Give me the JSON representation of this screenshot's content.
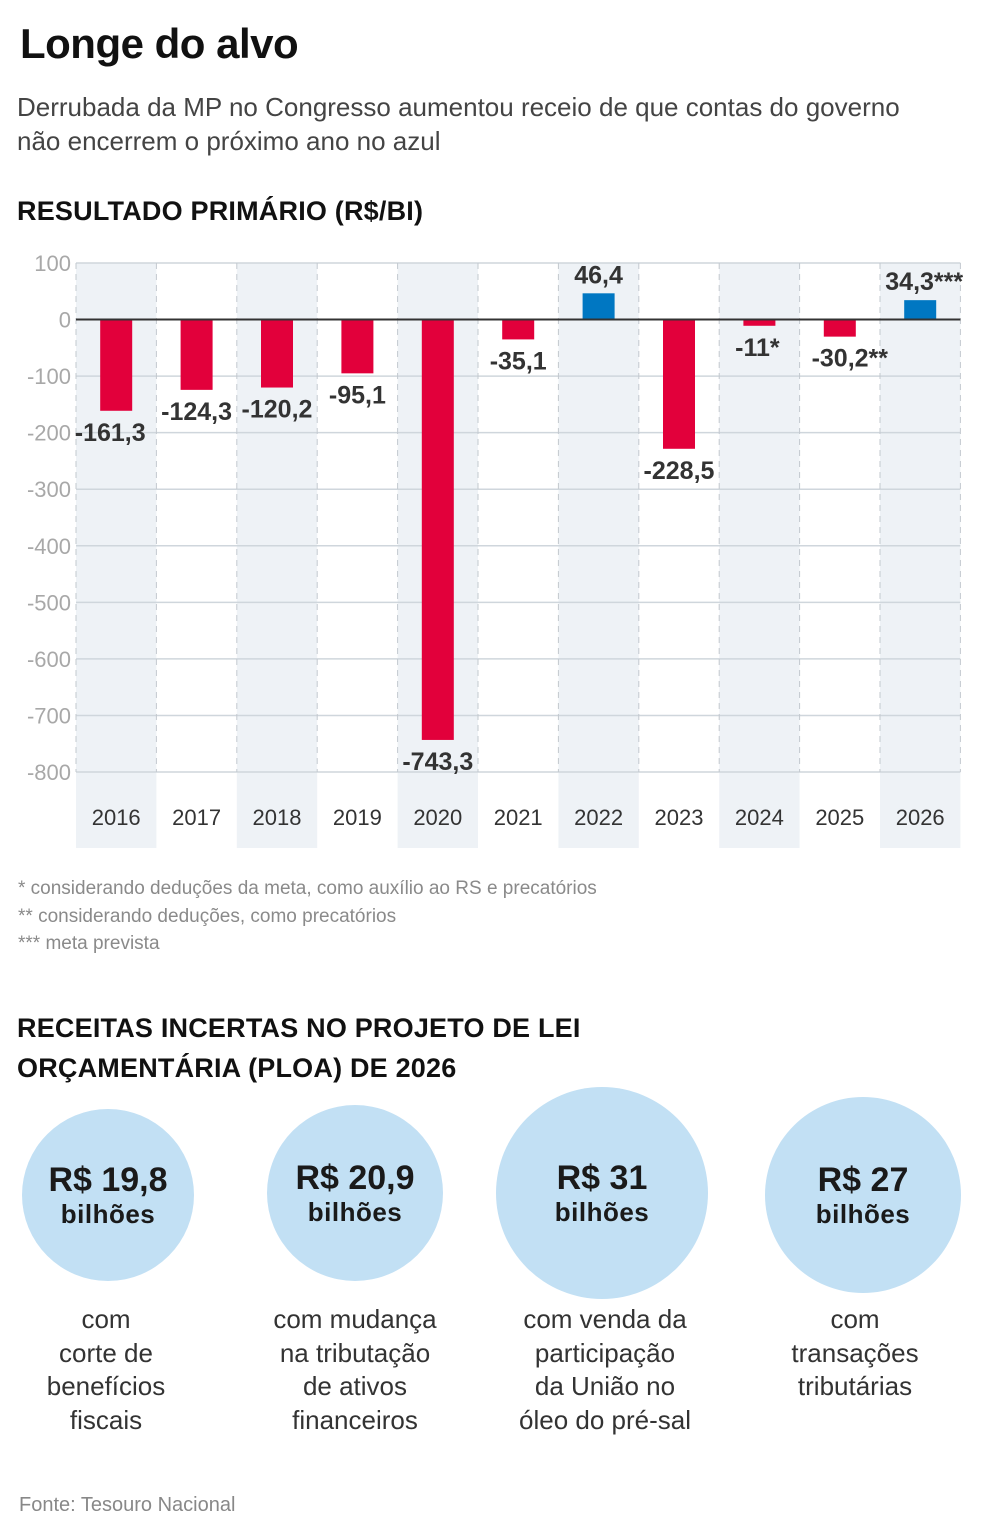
{
  "header": {
    "title": "Longe do alvo",
    "subtitle": "Derrubada da MP no Congresso aumentou receio de que contas do governo não encerrem o próximo ano no azul"
  },
  "chart_data": {
    "type": "bar",
    "title": "RESULTADO PRIMÁRIO (R$/BI)",
    "xlabel": "",
    "ylabel": "",
    "categories": [
      "2016",
      "2017",
      "2018",
      "2019",
      "2020",
      "2021",
      "2022",
      "2023",
      "2024",
      "2025",
      "2026"
    ],
    "values": [
      -161.3,
      -124.3,
      -120.2,
      -95.1,
      -743.3,
      -35.1,
      46.4,
      -228.5,
      -11,
      -30.2,
      34.3
    ],
    "data_labels": [
      "-161,3",
      "-124,3",
      "-120,2",
      "-95,1",
      "-743,3",
      "-35,1",
      "46,4",
      "-228,5",
      "-11*",
      "-30,2**",
      "34,3***"
    ],
    "ylim": [
      -800,
      100
    ],
    "yticks": [
      100,
      0,
      -100,
      -200,
      -300,
      -400,
      -500,
      -600,
      -700,
      -800
    ],
    "ytick_labels": [
      "100",
      "0",
      "-100",
      "-200",
      "-300",
      "-400",
      "-500",
      "-600",
      "-700",
      "-800"
    ],
    "grid": true,
    "legend": "none",
    "colors": {
      "negative": "#e2003b",
      "positive": "#0077c2",
      "zero_line": "#333333",
      "gridline": "#cfd6dc",
      "band": "#eef2f6",
      "tick_label": "#a8a8a8",
      "data_label": "#333333",
      "category_label": "#333333"
    }
  },
  "footnotes": [
    "* considerando deduções da meta, como auxílio ao RS e precatórios",
    "** considerando deduções, como precatórios",
    "*** meta prevista"
  ],
  "revenues": {
    "title": "RECEITAS INCERTAS NO PROJETO DE LEI ORÇAMENTÁRIA (PLOA) DE 2026",
    "bubble_color": "#c2e0f4",
    "items": [
      {
        "amount": "R$ 19,8",
        "unit": "bilhões",
        "value_billions": 19.8,
        "description": "com\ncorte de\nbenefícios\nfiscais"
      },
      {
        "amount": "R$ 20,9",
        "unit": "bilhões",
        "value_billions": 20.9,
        "description": "com mudança\nna tributação\nde ativos\nfinanceiros"
      },
      {
        "amount": "R$ 31",
        "unit": "bilhões",
        "value_billions": 31,
        "description": "com venda da\nparticipação\nda União no\nóleo do pré-sal"
      },
      {
        "amount": "R$ 27",
        "unit": "bilhões",
        "value_billions": 27,
        "description": "com\ntransações\ntributárias"
      }
    ]
  },
  "source": "Fonte: Tesouro Nacional"
}
